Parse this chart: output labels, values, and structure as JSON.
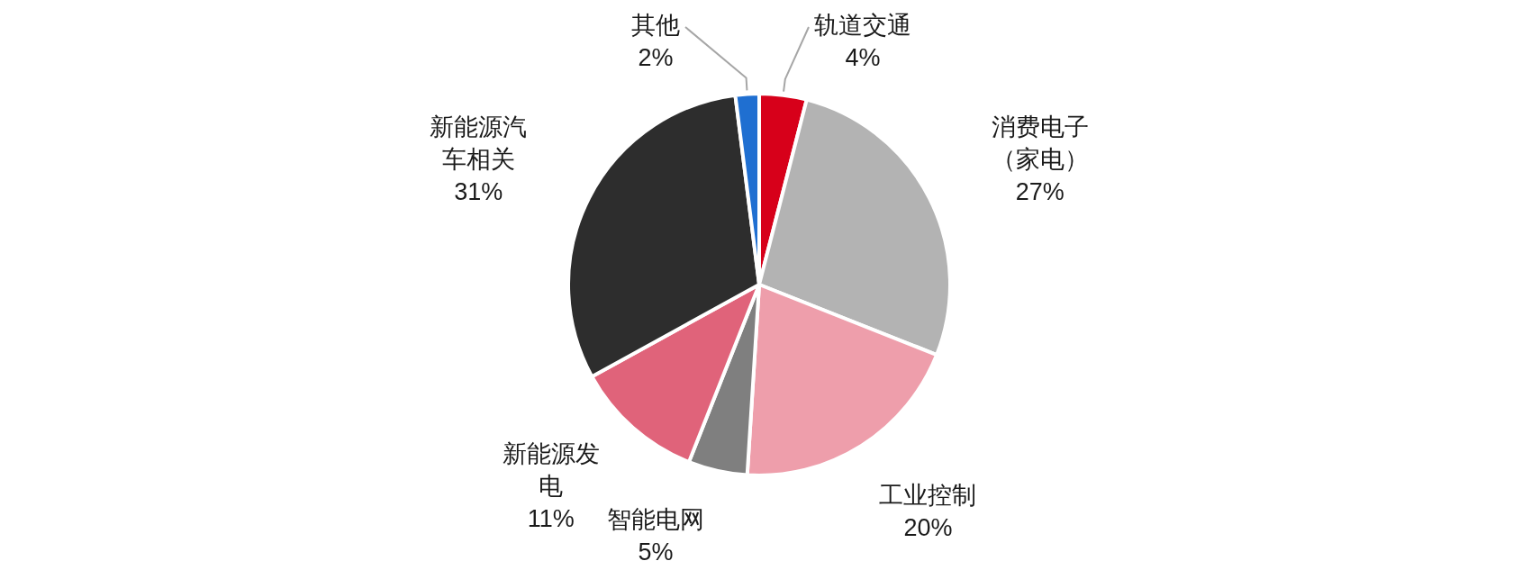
{
  "chart_data": {
    "type": "pie",
    "categories": [
      "轨道交通",
      "消费电子（家电）",
      "工业控制",
      "智能电网",
      "新能源发电",
      "新能源汽车相关",
      "其他"
    ],
    "values": [
      4,
      27,
      20,
      5,
      11,
      31,
      2
    ],
    "colors": [
      "#d7001a",
      "#b3b3b3",
      "#ee9eab",
      "#7f7f7f",
      "#e0637a",
      "#2d2d2d",
      "#1f6fd1"
    ],
    "value_labels": [
      "4%",
      "27%",
      "20%",
      "5%",
      "11%",
      "31%",
      "2%"
    ]
  }
}
